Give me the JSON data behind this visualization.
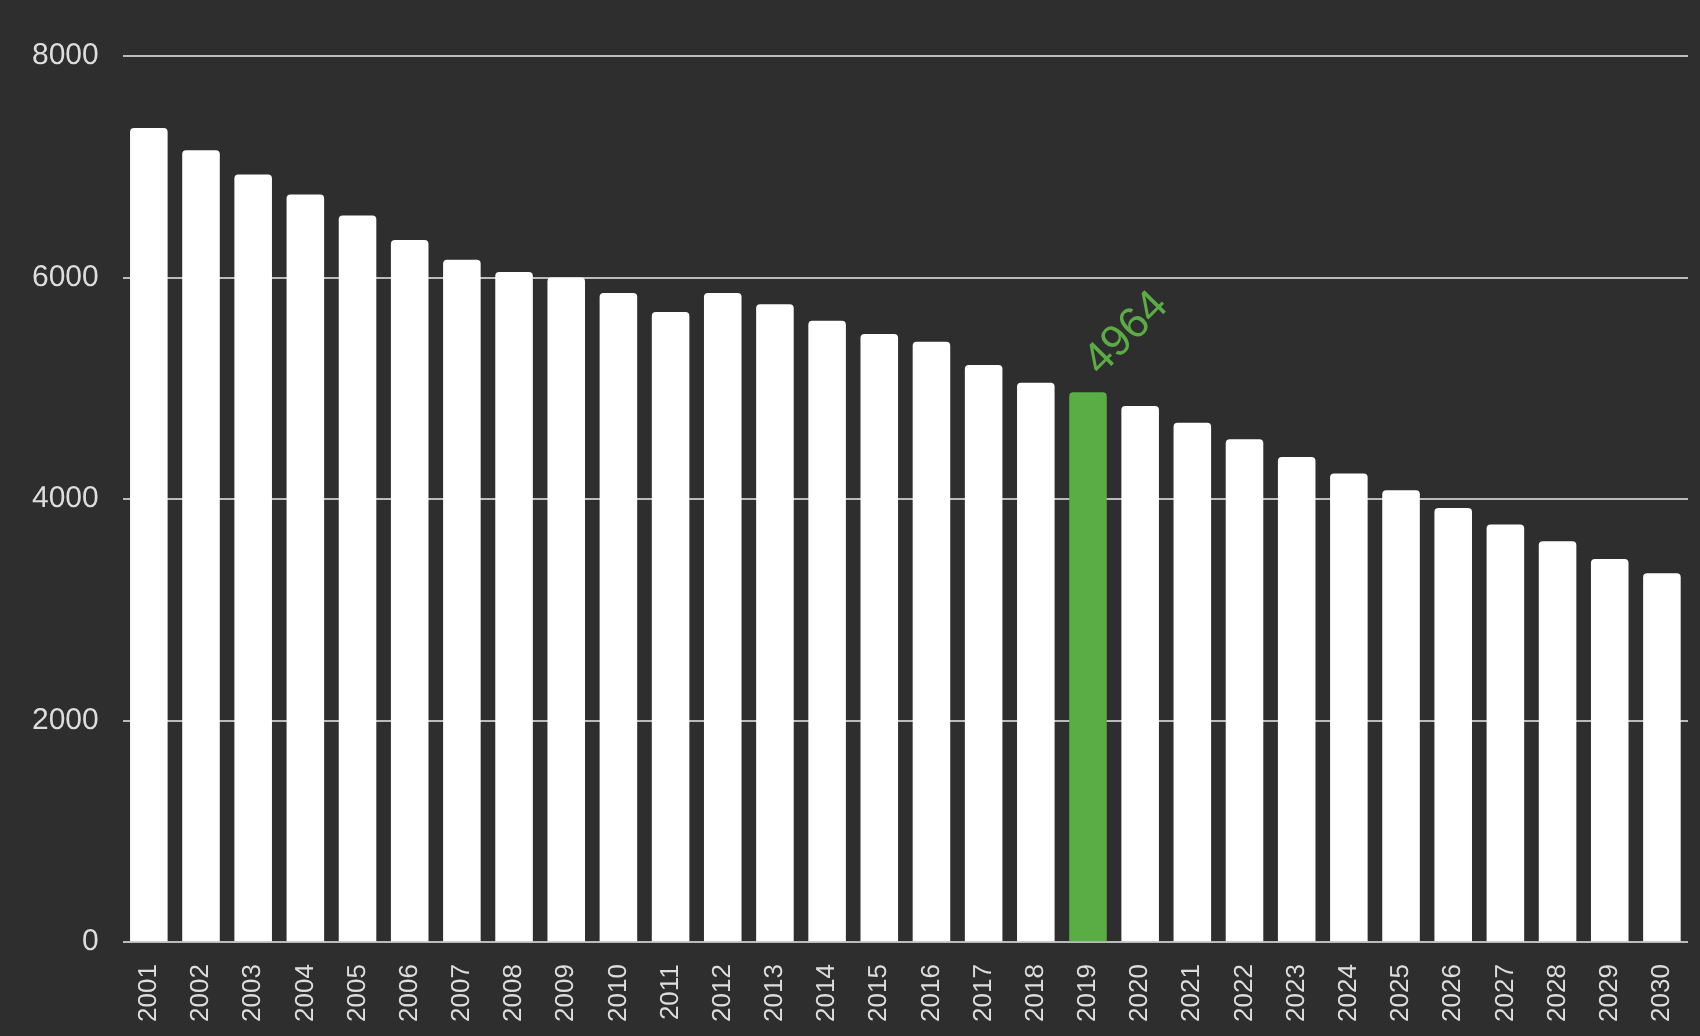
{
  "chart_data": {
    "type": "bar",
    "categories": [
      "2001",
      "2002",
      "2003",
      "2004",
      "2005",
      "2006",
      "2007",
      "2008",
      "2009",
      "2010",
      "2011",
      "2012",
      "2013",
      "2014",
      "2015",
      "2016",
      "2017",
      "2018",
      "2019",
      "2020",
      "2021",
      "2022",
      "2023",
      "2024",
      "2025",
      "2026",
      "2027",
      "2028",
      "2029",
      "2030"
    ],
    "values": [
      7350,
      7150,
      6930,
      6750,
      6560,
      6340,
      6160,
      6050,
      6000,
      5860,
      5690,
      5860,
      5760,
      5610,
      5490,
      5420,
      5210,
      5050,
      4964,
      4840,
      4690,
      4540,
      4380,
      4230,
      4080,
      3920,
      3770,
      3620,
      3460,
      3330
    ],
    "colors": [
      "#ffffff",
      "#ffffff",
      "#ffffff",
      "#ffffff",
      "#ffffff",
      "#ffffff",
      "#ffffff",
      "#ffffff",
      "#ffffff",
      "#ffffff",
      "#ffffff",
      "#ffffff",
      "#ffffff",
      "#ffffff",
      "#ffffff",
      "#ffffff",
      "#ffffff",
      "#ffffff",
      "#5aac44",
      "#ffffff",
      "#ffffff",
      "#ffffff",
      "#ffffff",
      "#ffffff",
      "#ffffff",
      "#ffffff",
      "#ffffff",
      "#ffffff",
      "#ffffff",
      "#ffffff"
    ],
    "value_labels": [
      null,
      null,
      null,
      null,
      null,
      null,
      null,
      null,
      null,
      null,
      null,
      null,
      null,
      null,
      null,
      null,
      null,
      null,
      "4964",
      null,
      null,
      null,
      null,
      null,
      null,
      null,
      null,
      null,
      null,
      null
    ],
    "ylim": [
      0,
      8000
    ],
    "yticks": [
      0,
      2000,
      4000,
      6000,
      8000
    ],
    "grid": "y",
    "legend": false
  }
}
